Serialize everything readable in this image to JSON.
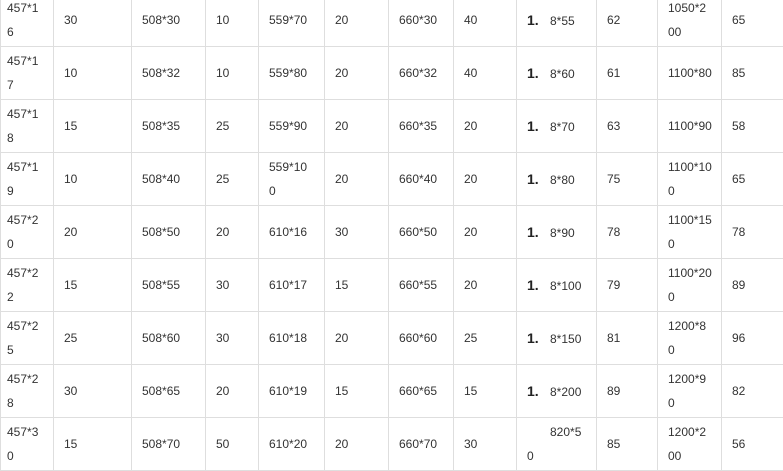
{
  "table": {
    "rows": [
      [
        "457*16",
        "30",
        "508*30",
        "10",
        "559*70",
        "20",
        "660*30",
        "40",
        {
          "marker": "1.",
          "value": "8*55"
        },
        "62",
        "1050*200",
        "65"
      ],
      [
        "457*17",
        "10",
        "508*32",
        "10",
        "559*80",
        "20",
        "660*32",
        "40",
        {
          "marker": "1.",
          "value": "8*60"
        },
        "61",
        "1100*80",
        "85"
      ],
      [
        "457*18",
        "15",
        "508*35",
        "25",
        "559*90",
        "20",
        "660*35",
        "20",
        {
          "marker": "1.",
          "value": "8*70"
        },
        "63",
        "1100*90",
        "58"
      ],
      [
        "457*19",
        "10",
        "508*40",
        "25",
        "559*100",
        "20",
        "660*40",
        "20",
        {
          "marker": "1.",
          "value": "8*80"
        },
        "75",
        "1100*100",
        "65"
      ],
      [
        "457*20",
        "20",
        "508*50",
        "20",
        "610*16",
        "30",
        "660*50",
        "20",
        {
          "marker": "1.",
          "value": "8*90"
        },
        "78",
        "1100*150",
        "78"
      ],
      [
        "457*22",
        "15",
        "508*55",
        "30",
        "610*17",
        "15",
        "660*55",
        "20",
        {
          "marker": "1.",
          "value": "8*100"
        },
        "79",
        "1100*200",
        "89"
      ],
      [
        "457*25",
        "25",
        "508*60",
        "30",
        "610*18",
        "20",
        "660*60",
        "25",
        {
          "marker": "1.",
          "value": "8*150"
        },
        "81",
        "1200*80",
        "96"
      ],
      [
        "457*28",
        "30",
        "508*65",
        "20",
        "610*19",
        "15",
        "660*65",
        "15",
        {
          "marker": "1.",
          "value": "8*200"
        },
        "89",
        "1200*90",
        "82"
      ],
      [
        "457*30",
        "15",
        "508*70",
        "50",
        "610*20",
        "20",
        "660*70",
        "30",
        {
          "marker": "",
          "value": "820*50"
        },
        "85",
        "1200*200",
        "56"
      ]
    ]
  }
}
